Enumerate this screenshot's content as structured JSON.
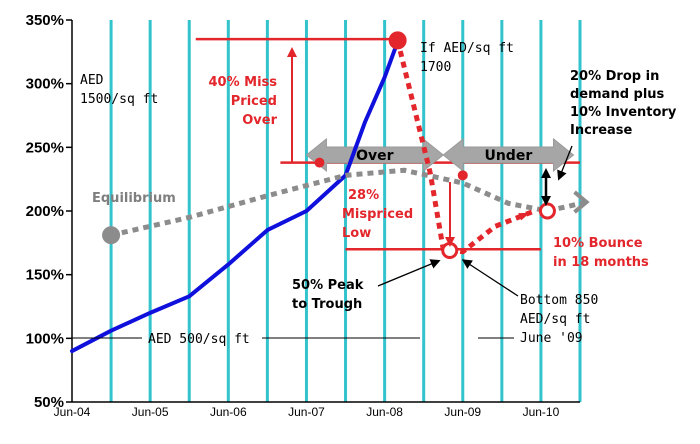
{
  "chart_data": {
    "type": "line",
    "title": "",
    "xlabel": "",
    "ylabel": "",
    "x_tick_labels": [
      "Jun-04",
      "Jun-05",
      "Jun-06",
      "Jun-07",
      "Jun-08",
      "Jun-09",
      "Jun-10"
    ],
    "y_tick_labels": [
      "50%",
      "100%",
      "150%",
      "200%",
      "250%",
      "300%",
      "350%"
    ],
    "ylim": [
      50,
      350
    ],
    "xlim": [
      "2004-06",
      "2010-12"
    ],
    "grid": {
      "vertical": true,
      "horizontal": false,
      "color": "#33c3cc"
    },
    "series": [
      {
        "color": "#1010dd",
        "style": "solid",
        "points": [
          [
            "2004-06",
            90
          ],
          [
            "2004-12",
            106
          ],
          [
            "2005-06",
            120
          ],
          [
            "2005-12",
            133
          ],
          [
            "2006-06",
            158
          ],
          [
            "2006-12",
            185
          ],
          [
            "2007-06",
            200
          ],
          [
            "2007-12",
            228
          ],
          [
            "2008-03",
            270
          ],
          [
            "2008-06",
            305
          ],
          [
            "2008-08",
            333
          ]
        ]
      },
      {
        "name": "Equilibrium",
        "color": "#8c8c8c",
        "style": "dotted",
        "points": [
          [
            "2004-12",
            181
          ],
          [
            "2005-12",
            195
          ],
          [
            "2006-12",
            212
          ],
          [
            "2007-12",
            228
          ],
          [
            "2008-09",
            232
          ],
          [
            "2009-06",
            222
          ],
          [
            "2010-01",
            206
          ],
          [
            "2010-07",
            200
          ],
          [
            "2011-01",
            207
          ]
        ]
      },
      {
        "color": "#e3262b",
        "style": "dotted",
        "points": [
          [
            "2008-08",
            334
          ],
          [
            "2009-01",
            230
          ],
          [
            "2009-03",
            170
          ],
          [
            "2009-06",
            168
          ],
          [
            "2009-11",
            188
          ],
          [
            "2010-05",
            200
          ]
        ]
      }
    ],
    "reference_lines": [
      {
        "y": 335,
        "from": "2006-01",
        "to": "2008-08",
        "color": "#e3262b"
      },
      {
        "y": 238,
        "from": "2007-02",
        "to": "2010-12",
        "color": "#e3262b"
      },
      {
        "y": 170,
        "from": "2007-12",
        "to": "2010-06",
        "color": "#e3262b"
      }
    ],
    "markers": [
      {
        "x": "2008-08",
        "y": 334,
        "style": "red-filled"
      },
      {
        "x": "2007-08",
        "y": 238,
        "style": "red-dot"
      },
      {
        "x": "2009-06",
        "y": 228,
        "style": "red-dot"
      },
      {
        "x": "2009-04",
        "y": 169,
        "style": "red-ring"
      },
      {
        "x": "2010-07",
        "y": 200,
        "style": "red-ring"
      },
      {
        "x": "2004-12",
        "y": 181,
        "style": "grey-filled"
      }
    ],
    "bands": [
      {
        "label": "Over",
        "from": "2007-06",
        "to": "2009-03",
        "y": 244
      },
      {
        "label": "Under",
        "from": "2009-03",
        "to": "2010-11",
        "y": 244
      }
    ],
    "annotations": {
      "aed1500": [
        "AED",
        "1500/sq ft"
      ],
      "aed1700": [
        "If AED/sq ft",
        "1700"
      ],
      "miss40": [
        "40% Miss",
        "Priced",
        "Over"
      ],
      "mispriced28": [
        "28%",
        "Mispriced",
        "Low"
      ],
      "drop20": [
        "20% Drop in",
        "demand plus",
        "10% Inventory",
        "Increase"
      ],
      "equilibrium": "Equilibrium",
      "bounce10": [
        "10% Bounce",
        "in 18 months"
      ],
      "peak50": [
        "50% Peak",
        "to Trough"
      ],
      "bottom850": [
        "Bottom  850",
        "AED/sq ft",
        "June '09"
      ],
      "aed500": "AED 500/sq ft"
    }
  }
}
